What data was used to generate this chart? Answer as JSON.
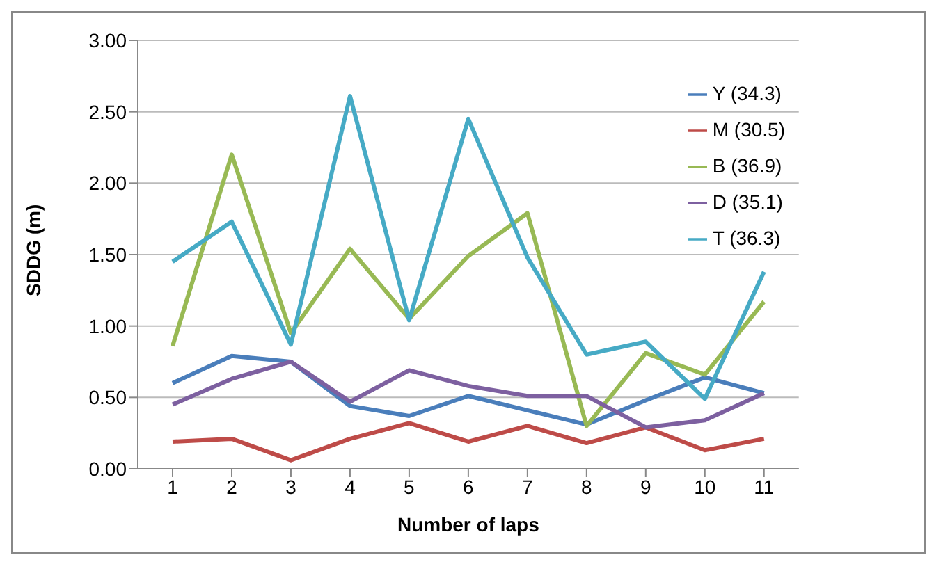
{
  "chart_data": {
    "type": "line",
    "xlabel": "Number of laps",
    "ylabel": "SDDG (m)",
    "categories": [
      "1",
      "2",
      "3",
      "4",
      "5",
      "6",
      "7",
      "8",
      "9",
      "10",
      "11"
    ],
    "series": [
      {
        "name": "Y (34.3)",
        "color": "#4a7ebb",
        "values": [
          0.6,
          0.79,
          0.75,
          0.44,
          0.37,
          0.51,
          0.41,
          0.31,
          0.48,
          0.64,
          0.53
        ]
      },
      {
        "name": "M (30.5)",
        "color": "#be4b48",
        "values": [
          0.19,
          0.21,
          0.06,
          0.21,
          0.32,
          0.19,
          0.3,
          0.18,
          0.29,
          0.13,
          0.21
        ]
      },
      {
        "name": "B (36.9)",
        "color": "#98b954",
        "values": [
          0.86,
          2.2,
          0.95,
          1.54,
          1.05,
          1.49,
          1.79,
          0.3,
          0.81,
          0.66,
          1.17
        ]
      },
      {
        "name": "D (35.1)",
        "color": "#7d60a0",
        "values": [
          0.45,
          0.63,
          0.75,
          0.47,
          0.69,
          0.58,
          0.51,
          0.51,
          0.29,
          0.34,
          0.53
        ]
      },
      {
        "name": "T (36.3)",
        "color": "#46aac5",
        "values": [
          1.45,
          1.73,
          0.87,
          2.61,
          1.04,
          2.45,
          1.48,
          0.8,
          0.89,
          0.49,
          1.38
        ]
      }
    ],
    "ylim": [
      0,
      3
    ],
    "yticks": [
      {
        "value": 0,
        "label": "0.00"
      },
      {
        "value": 0.5,
        "label": "0.50"
      },
      {
        "value": 1,
        "label": "1.00"
      },
      {
        "value": 1.5,
        "label": "1.50"
      },
      {
        "value": 2,
        "label": "2.00"
      },
      {
        "value": 2.5,
        "label": "2.50"
      },
      {
        "value": 3,
        "label": "3.00"
      }
    ],
    "grid": "y",
    "legend": "top right",
    "marker": "none",
    "line_style": "solid"
  }
}
